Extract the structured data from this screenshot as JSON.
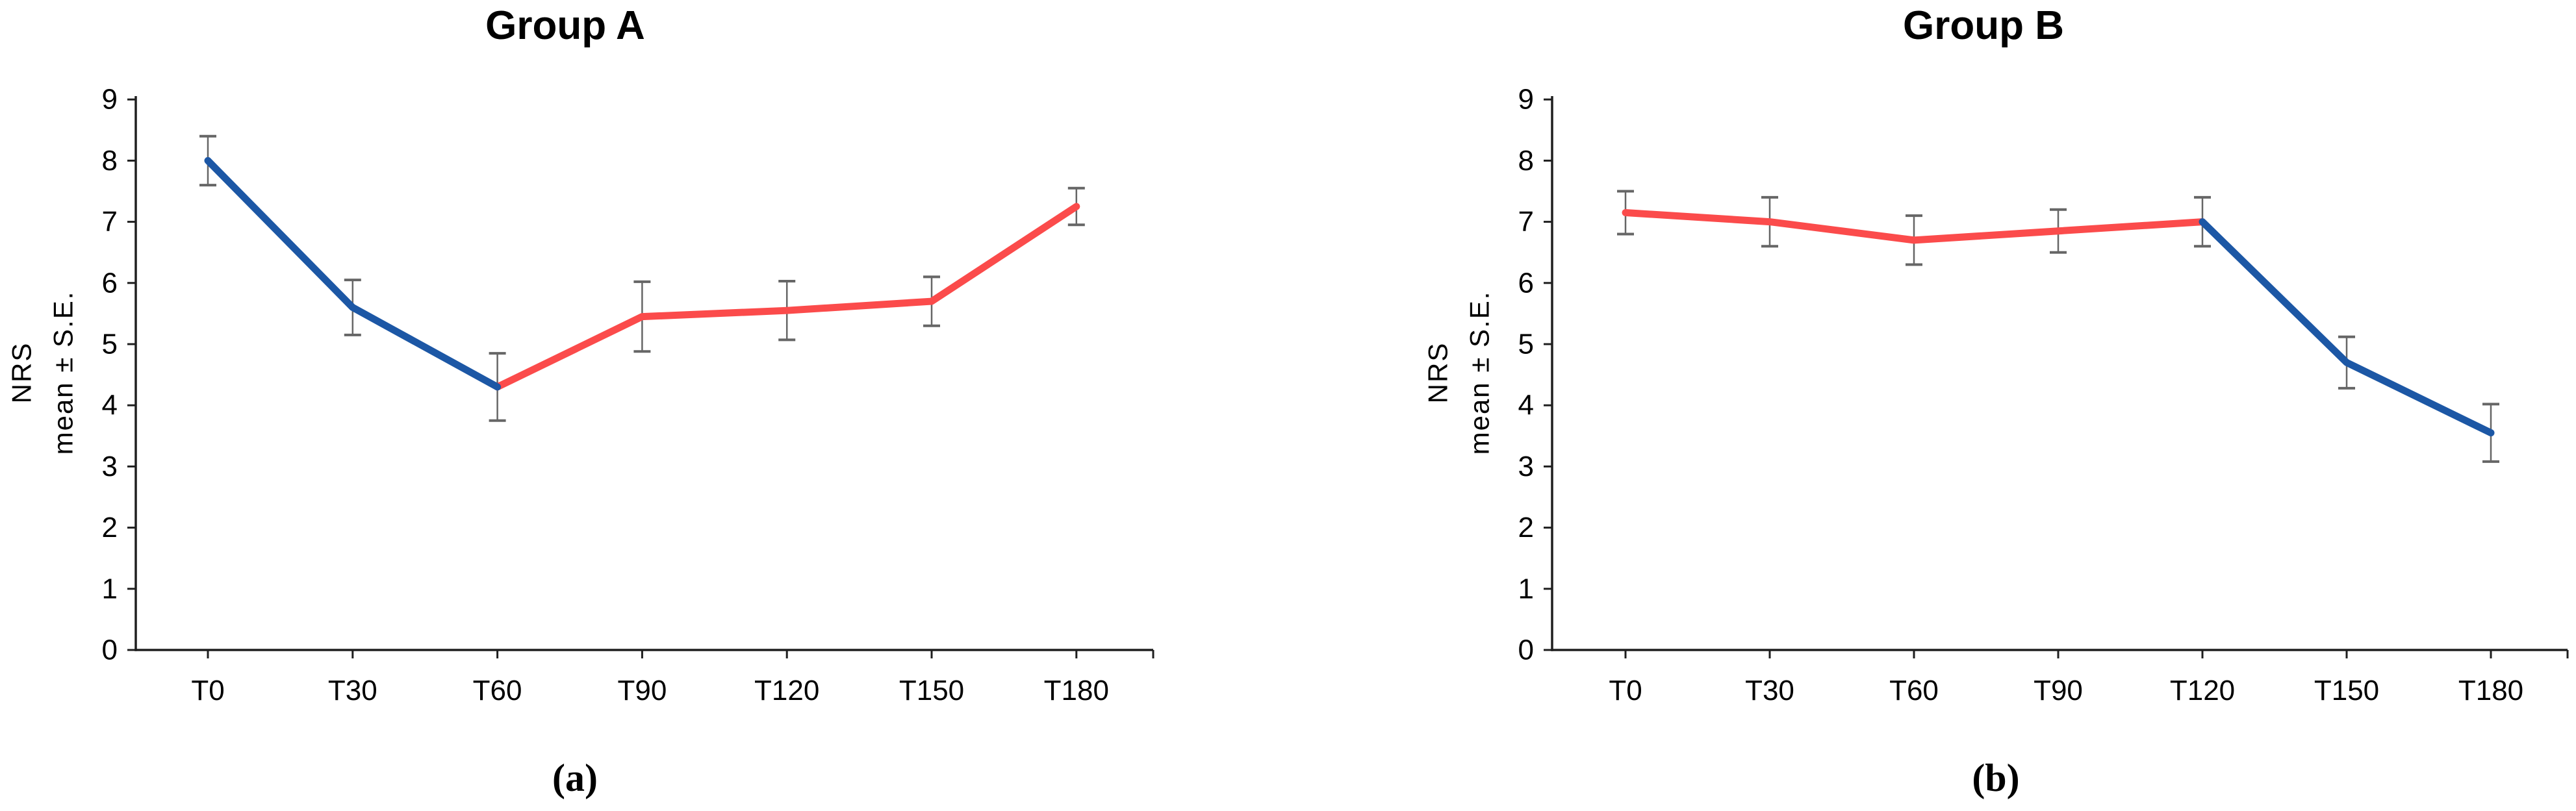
{
  "colors": {
    "blue_segment": "#1c57a5",
    "red_segment": "#fb4b4b",
    "error_bar": "#666666",
    "axis": "#1f1f1f",
    "text": "#000000"
  },
  "chart_data": [
    {
      "id": "a",
      "type": "line",
      "title": "Group A",
      "caption": "(a)",
      "ylabel_line1": "NRS",
      "ylabel_line2": "mean ± S.E.",
      "xlabel": "",
      "categories": [
        "T0",
        "T30",
        "T60",
        "T90",
        "T120",
        "T150",
        "T180"
      ],
      "ylim": [
        0,
        9
      ],
      "yticks": [
        0,
        1,
        2,
        3,
        4,
        5,
        6,
        7,
        8,
        9
      ],
      "grid": false,
      "legend": "none",
      "points": [
        8.0,
        5.6,
        4.3,
        5.45,
        5.55,
        5.7,
        7.25
      ],
      "errors": [
        0.4,
        0.45,
        0.55,
        0.57,
        0.48,
        0.4,
        0.3
      ],
      "series": [
        {
          "name": "decreasing-blue-segment",
          "color": "blue_segment",
          "span": [
            0,
            2
          ],
          "values": [
            8.0,
            5.6,
            4.3
          ]
        },
        {
          "name": "increasing-red-segment",
          "color": "red_segment",
          "span": [
            2,
            6
          ],
          "values": [
            4.3,
            5.45,
            5.55,
            5.7,
            7.25
          ]
        }
      ]
    },
    {
      "id": "b",
      "type": "line",
      "title": "Group B",
      "caption": "(b)",
      "ylabel_line1": "NRS",
      "ylabel_line2": "mean ± S.E.",
      "xlabel": "",
      "categories": [
        "T0",
        "T30",
        "T60",
        "T90",
        "T120",
        "T150",
        "T180"
      ],
      "ylim": [
        0,
        9
      ],
      "yticks": [
        0,
        1,
        2,
        3,
        4,
        5,
        6,
        7,
        8,
        9
      ],
      "grid": false,
      "legend": "none",
      "points": [
        7.15,
        7.0,
        6.7,
        6.85,
        7.0,
        4.7,
        3.55
      ],
      "errors": [
        0.35,
        0.4,
        0.4,
        0.35,
        0.4,
        0.42,
        0.47
      ],
      "series": [
        {
          "name": "plateau-red-segment",
          "color": "red_segment",
          "span": [
            0,
            4
          ],
          "values": [
            7.15,
            7.0,
            6.7,
            6.85,
            7.0
          ]
        },
        {
          "name": "decreasing-blue-segment",
          "color": "blue_segment",
          "span": [
            4,
            6
          ],
          "values": [
            7.0,
            4.7,
            3.55
          ]
        }
      ]
    }
  ]
}
